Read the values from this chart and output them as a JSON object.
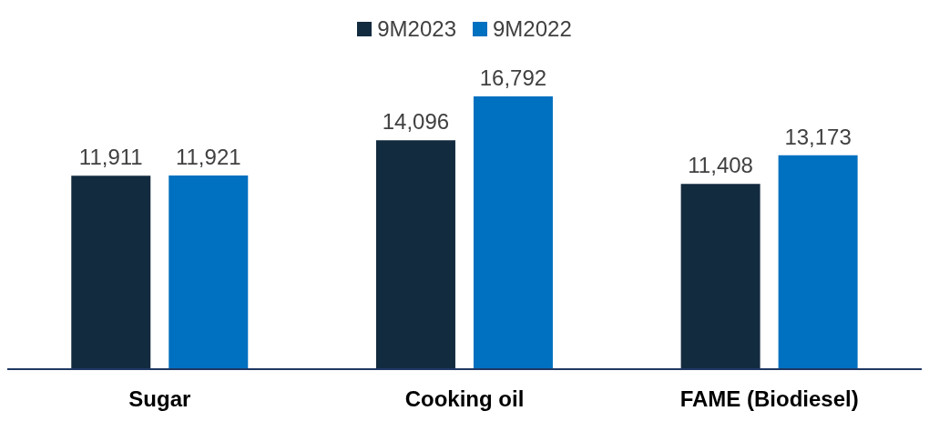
{
  "chart_data": {
    "type": "bar",
    "categories": [
      "Sugar",
      "Cooking oil",
      "FAME (Biodiesel)"
    ],
    "series": [
      {
        "name": "9M2023",
        "color": "#132b3f",
        "values": [
          11911,
          14096,
          11408
        ],
        "value_labels": [
          "11,911",
          "14,096",
          "11,408"
        ]
      },
      {
        "name": "9M2022",
        "color": "#0070c0",
        "values": [
          11921,
          16792,
          13173
        ],
        "value_labels": [
          "11,921",
          "16,792",
          "13,173"
        ]
      }
    ],
    "legend": "top",
    "grid": false
  }
}
